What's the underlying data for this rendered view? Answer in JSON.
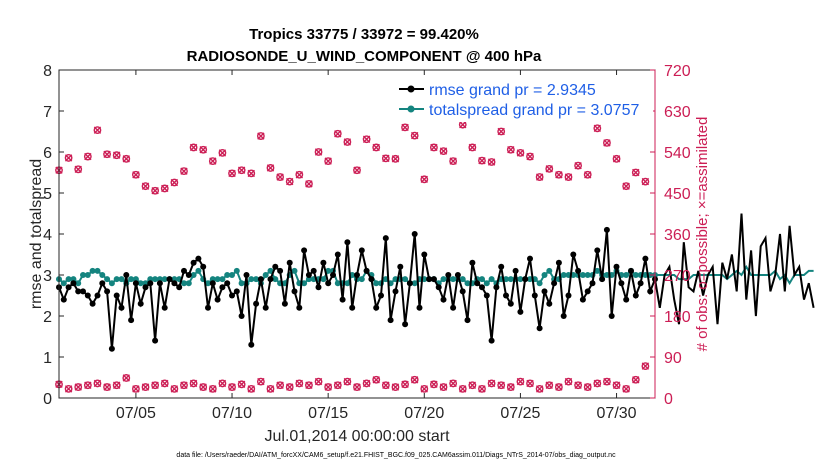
{
  "title_line1": "Tropics 33775 / 33972 = 99.420%",
  "title_line2": "RADIOSONDE_U_WIND_COMPONENT @ 400 hPa",
  "footer": "data file: /Users/raeder/DAI/ATM_forcXX/CAM6_setup/f.e21.FHIST_BGC.f09_025.CAM6assim.011/Diags_NTrS_2014-07/obs_diag_output.nc",
  "colors": {
    "rmse": "#000000",
    "spread": "#14847f",
    "obs": "#cc1e55",
    "legend_text": "#1f5fe6"
  },
  "chart_data": {
    "type": "line",
    "xlabel": "Jul.01,2014 00:00:00 start",
    "ylabel": "rmse and totalspread",
    "y2label": "# of obs: o=possible; ×=assimilated",
    "ylim": [
      0,
      8
    ],
    "y2lim": [
      0,
      720
    ],
    "xlim": [
      1,
      32
    ],
    "yticks": [
      "0",
      "1",
      "2",
      "3",
      "4",
      "5",
      "6",
      "7",
      "8"
    ],
    "y2ticks": [
      "0",
      "90",
      "180",
      "270",
      "360",
      "450",
      "540",
      "630",
      "720"
    ],
    "xticks": [
      {
        "day": 5,
        "label": "07/05"
      },
      {
        "day": 10,
        "label": "07/10"
      },
      {
        "day": 15,
        "label": "07/15"
      },
      {
        "day": 20,
        "label": "07/20"
      },
      {
        "day": 25,
        "label": "07/25"
      },
      {
        "day": 30,
        "label": "07/30"
      }
    ],
    "legend": [
      {
        "name": "rmse grand pr = 2.9345",
        "color": "#000000"
      },
      {
        "name": "totalspread grand pr = 3.0757",
        "color": "#14847f"
      }
    ],
    "x_start_day": 1,
    "x_step_days": 0.25,
    "rmse": [
      2.7,
      2.4,
      2.7,
      2.8,
      2.6,
      2.6,
      2.5,
      2.3,
      2.5,
      2.8,
      2.6,
      1.2,
      2.5,
      2.2,
      3.0,
      1.9,
      2.8,
      2.3,
      2.7,
      2.8,
      1.4,
      2.8,
      2.2,
      2.9,
      2.8,
      2.7,
      3.1,
      3.0,
      3.3,
      3.4,
      3.2,
      2.2,
      2.8,
      2.4,
      2.7,
      2.8,
      2.5,
      2.6,
      2.0,
      3.0,
      1.3,
      2.3,
      2.9,
      2.2,
      2.9,
      3.2,
      3.1,
      2.3,
      3.3,
      2.6,
      2.2,
      3.6,
      3.0,
      3.1,
      2.7,
      3.3,
      2.8,
      3.0,
      3.5,
      2.4,
      3.8,
      2.2,
      3.0,
      3.6,
      3.1,
      2.9,
      2.2,
      2.5,
      3.9,
      1.9,
      2.6,
      3.2,
      1.8,
      2.8,
      4.0,
      2.2,
      3.5,
      2.9,
      2.9,
      2.7,
      2.4,
      3.0,
      2.2,
      3.0,
      2.6,
      1.9,
      3.3,
      2.8,
      2.7,
      2.5,
      1.4,
      2.7,
      3.2,
      2.5,
      2.3,
      3.1,
      2.1,
      2.9,
      3.4,
      2.5,
      1.7,
      2.6,
      2.3,
      2.8,
      3.3,
      2.0,
      2.5,
      3.5,
      3.1,
      2.4,
      2.6,
      2.8,
      3.6,
      2.9,
      4.1,
      2.0,
      3.2,
      2.8,
      2.4,
      3.1,
      2.5,
      2.8,
      3.4,
      2.6,
      2.9,
      2.2,
      3.0,
      3.2,
      2.4,
      1.8,
      3.8,
      2.7,
      2.6,
      3.1,
      2.5,
      3.0,
      3.2,
      1.8,
      3.3,
      2.9,
      3.5,
      2.6,
      4.5,
      2.4,
      3.6,
      2.0,
      3.7,
      3.9,
      2.6,
      3.0,
      4.0,
      2.6,
      4.2,
      3.0,
      3.2,
      2.4,
      2.8,
      2.2
    ],
    "totalspread": [
      2.9,
      2.8,
      2.9,
      2.9,
      2.8,
      3.0,
      3.0,
      3.1,
      3.1,
      3.0,
      2.9,
      2.8,
      2.9,
      2.9,
      2.8,
      2.9,
      2.9,
      2.8,
      2.8,
      2.9,
      2.9,
      2.9,
      2.9,
      2.9,
      2.9,
      2.9,
      2.8,
      2.8,
      3.0,
      3.1,
      2.9,
      2.8,
      2.9,
      2.9,
      2.9,
      3.0,
      3.0,
      3.1,
      2.8,
      2.8,
      2.9,
      2.9,
      2.8,
      3.0,
      3.1,
      2.9,
      2.8,
      2.8,
      3.0,
      3.1,
      2.8,
      2.8,
      2.9,
      2.9,
      2.9,
      2.9,
      3.1,
      3.1,
      2.8,
      2.8,
      2.8,
      3.0,
      2.9,
      2.9,
      3.1,
      3.0,
      2.8,
      2.8,
      2.9,
      2.8,
      2.9,
      2.9,
      2.9,
      2.8,
      2.8,
      2.9,
      2.9,
      2.9,
      2.9,
      2.8,
      2.9,
      2.9,
      2.9,
      2.9,
      2.9,
      2.8,
      2.8,
      2.9,
      2.9,
      2.8,
      2.9,
      2.8,
      2.9,
      2.9,
      2.9,
      2.9,
      2.9,
      2.9,
      2.9,
      2.9,
      2.8,
      3.0,
      3.1,
      2.9,
      2.9,
      3.0,
      3.0,
      3.0,
      3.0,
      3.0,
      3.0,
      3.0,
      3.1,
      3.0,
      3.0,
      3.0,
      3.1,
      3.0,
      3.0,
      3.1,
      3.0,
      3.0,
      3.0,
      3.0,
      3.0,
      3.0,
      3.0,
      3.0,
      3.0,
      2.9,
      2.9,
      2.9,
      3.0,
      3.0,
      3.0,
      3.0,
      3.0,
      3.0,
      3.0,
      2.9,
      3.0,
      3.1,
      3.0,
      3.2,
      3.0,
      3.0,
      3.0,
      3.0,
      3.0,
      3.1,
      2.9,
      3.0,
      2.8,
      3.0,
      3.0,
      3.0,
      3.1,
      3.1
    ],
    "obs_possible_days": [
      1,
      1.5,
      2,
      2.5,
      3,
      3.5,
      4,
      4.5,
      5,
      5.5,
      6,
      6.5,
      7,
      7.5,
      8,
      8.5,
      9,
      9.5,
      10,
      10.5,
      11,
      11.5,
      12,
      12.5,
      13,
      13.5,
      14,
      14.5,
      15,
      15.5,
      16,
      16.5,
      17,
      17.5,
      18,
      18.5,
      19,
      19.5,
      20,
      20.5,
      21,
      21.5,
      22,
      22.5,
      23,
      23.5,
      24,
      24.5,
      25,
      25.5,
      26,
      26.5,
      27,
      27.5,
      28,
      28.5,
      29,
      29.5,
      30,
      30.5,
      31,
      31.5
    ],
    "obs_possible": [
      500,
      527,
      502,
      530,
      588,
      535,
      533,
      525,
      490,
      465,
      455,
      460,
      473,
      498,
      550,
      545,
      520,
      538,
      493,
      500,
      493,
      575,
      505,
      485,
      475,
      490,
      470,
      540,
      520,
      580,
      562,
      500,
      568,
      550,
      526,
      525,
      594,
      576,
      480,
      550,
      542,
      520,
      600,
      550,
      521,
      518,
      585,
      545,
      538,
      530,
      485,
      503,
      490,
      485,
      510,
      490,
      592,
      560,
      525,
      465,
      495,
      475
    ],
    "obs_assim_low": [
      30,
      20,
      24,
      28,
      32,
      24,
      28,
      44,
      20,
      24,
      28,
      32,
      20,
      28,
      32,
      24,
      20,
      32,
      24,
      30,
      20,
      36,
      20,
      28,
      24,
      32,
      28,
      36,
      24,
      28,
      36,
      24,
      32,
      40,
      28,
      24,
      30,
      40,
      20,
      30,
      24,
      32,
      20,
      28,
      20,
      32,
      28,
      24,
      36,
      32,
      20,
      28,
      24,
      36,
      28,
      24,
      32,
      36,
      28,
      20,
      40,
      70
    ]
  }
}
